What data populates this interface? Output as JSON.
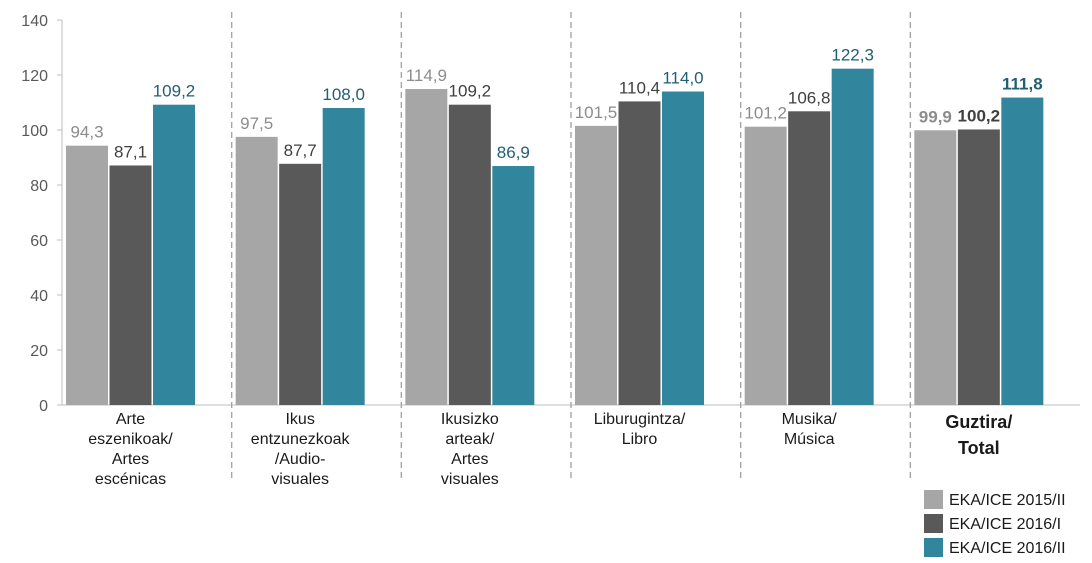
{
  "chart_data": {
    "type": "bar",
    "title": "",
    "xlabel": "",
    "ylabel": "",
    "ylim": [
      0,
      140
    ],
    "yticks": [
      "0",
      "20",
      "40",
      "60",
      "80",
      "100",
      "120",
      "140"
    ],
    "grid": false,
    "legend_position": "bottom-right",
    "categories": [
      {
        "lines": [
          "Arte",
          "eszenikoak/",
          "Artes",
          "escénicas"
        ],
        "bold": false
      },
      {
        "lines": [
          "Ikus",
          "entzunezkoak",
          "/Audio-",
          "visuales"
        ],
        "bold": false
      },
      {
        "lines": [
          "Ikusizko",
          "arteak/",
          "Artes",
          "visuales"
        ],
        "bold": false
      },
      {
        "lines": [
          "Liburugintza/",
          "Libro"
        ],
        "bold": false
      },
      {
        "lines": [
          "Musika/",
          "Música"
        ],
        "bold": false
      },
      {
        "lines": [
          "Guztira/",
          "Total"
        ],
        "bold": true
      }
    ],
    "series": [
      {
        "name": "EKA/ICE 2015/II",
        "color": "#a6a6a6",
        "label_color": "#8c8c8c",
        "values": [
          94.3,
          97.5,
          114.9,
          101.5,
          101.2,
          99.9
        ],
        "labels": [
          "94,3",
          "97,5",
          "114,9",
          "101,5",
          "101,2",
          "99,9"
        ]
      },
      {
        "name": "EKA/ICE 2016/I",
        "color": "#595959",
        "label_color": "#404040",
        "values": [
          87.1,
          87.7,
          109.2,
          110.4,
          106.8,
          100.2
        ],
        "labels": [
          "87,1",
          "87,7",
          "109,2",
          "110,4",
          "106,8",
          "100,2"
        ]
      },
      {
        "name": "EKA/ICE 2016/II",
        "color": "#31859c",
        "label_color": "#215f73",
        "values": [
          109.2,
          108.0,
          86.9,
          114.0,
          122.3,
          111.8
        ],
        "labels": [
          "109,2",
          "108,0",
          "86,9",
          "114,0",
          "122,3",
          "111,8"
        ]
      }
    ]
  }
}
